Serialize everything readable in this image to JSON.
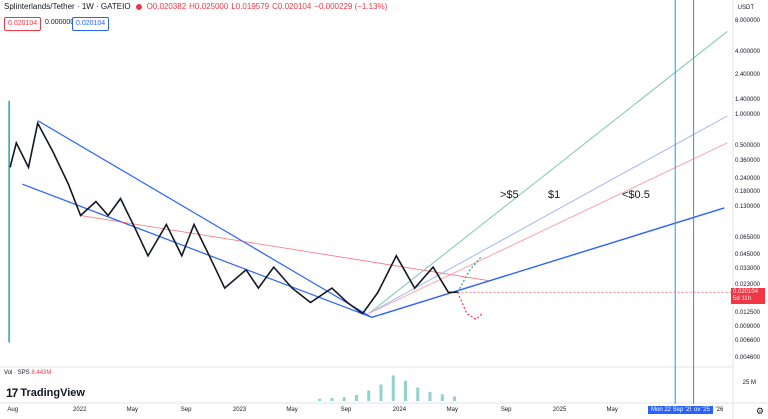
{
  "header": {
    "symbol": "Splinterlands/Tether · 1W · GATEIO",
    "open": "O0.020382",
    "high": "H0.025000",
    "low": "L0.019579",
    "close": "C0.020104",
    "change": "−0.000229 (−1.13%)",
    "bid": "0.020104",
    "spread": "0.000000",
    "ask": "0.020104"
  },
  "axis": {
    "currency": "USDT",
    "y_ticks": [
      "8.000000",
      "4.000000",
      "2.400000",
      "1.400000",
      "1.000000",
      "0.500000",
      "0.360000",
      "0.240000",
      "0.180000",
      "0.130000",
      "0.065000",
      "0.045000",
      "0.033000",
      "0.023000",
      "0.012500",
      "0.009000",
      "0.006600",
      "0.004600"
    ],
    "x_ticks": [
      "Aug",
      "2022",
      "May",
      "Sep",
      "2023",
      "May",
      "Sep",
      "2024",
      "May",
      "Sep",
      "2025",
      "May",
      "'26"
    ]
  },
  "last_price": {
    "value": "0.020104",
    "countdown": "5d 11h"
  },
  "date_markers": [
    "Mon 22 Sep '25",
    "ov '25"
  ],
  "annotations": [
    ">$5",
    "$1",
    "<$0.5"
  ],
  "volume": {
    "label": "Vol · SPS",
    "value": "8.443M",
    "ticks": [
      "25 M"
    ]
  },
  "branding": {
    "name": "TradingView"
  },
  "chart_data": {
    "type": "line",
    "title": "Splinterlands/Tether · 1W · GATEIO",
    "y_scale": "log",
    "ylim": [
      0.004,
      10
    ],
    "xlim": [
      "2021-07-12",
      "2026-02-01"
    ],
    "series": [
      {
        "values": [
          [
            "2021-07-26",
            0.32
          ],
          [
            "2021-08-09",
            0.55
          ],
          [
            "2021-09-06",
            0.32
          ],
          [
            "2021-09-27",
            0.85
          ],
          [
            "2021-11-01",
            0.45
          ],
          [
            "2021-12-06",
            0.22
          ],
          [
            "2022-01-03",
            0.11
          ],
          [
            "2022-02-07",
            0.15
          ],
          [
            "2022-03-07",
            0.11
          ],
          [
            "2022-04-04",
            0.16
          ],
          [
            "2022-05-09",
            0.08
          ],
          [
            "2022-06-06",
            0.045
          ],
          [
            "2022-07-18",
            0.09
          ],
          [
            "2022-08-22",
            0.045
          ],
          [
            "2022-09-19",
            0.09
          ],
          [
            "2022-10-24",
            0.045
          ],
          [
            "2022-11-28",
            0.022
          ],
          [
            "2023-01-16",
            0.033
          ],
          [
            "2023-02-13",
            0.022
          ],
          [
            "2023-03-20",
            0.035
          ],
          [
            "2023-05-01",
            0.022
          ],
          [
            "2023-06-12",
            0.016
          ],
          [
            "2023-07-31",
            0.022
          ],
          [
            "2023-09-04",
            0.016
          ],
          [
            "2023-10-09",
            0.0125
          ],
          [
            "2023-11-13",
            0.02
          ],
          [
            "2023-12-25",
            0.045
          ],
          [
            "2024-02-05",
            0.022
          ],
          [
            "2024-03-18",
            0.035
          ],
          [
            "2024-04-22",
            0.02
          ],
          [
            "2024-05-13",
            0.0201
          ]
        ]
      },
      {
        "values": [
          [
            "2024-05-13",
            0.0201
          ],
          [
            "2024-06-10",
            0.033
          ],
          [
            "2024-07-08",
            0.045
          ]
        ]
      },
      {
        "values": [
          [
            "2024-05-13",
            0.0201
          ],
          [
            "2024-06-03",
            0.0125
          ],
          [
            "2024-06-24",
            0.011
          ],
          [
            "2024-07-08",
            0.0125
          ]
        ]
      }
    ],
    "trendlines": [
      {
        "from": [
          "2021-09-27",
          0.9
        ],
        "to": [
          "2023-10-30",
          0.0115
        ]
      },
      {
        "from": [
          "2021-08-23",
          0.22
        ],
        "to": [
          "2023-10-30",
          0.0115
        ]
      },
      {
        "from": [
          "2022-01-03",
          0.11
        ],
        "to": [
          "2024-07-22",
          0.026
        ]
      },
      {
        "from": [
          "2023-10-30",
          0.0115
        ],
        "to": [
          "2026-01-12",
          0.13
        ]
      }
    ],
    "projections": [
      {
        "label": ">$5",
        "from": [
          "2023-10-23",
          0.0125
        ],
        "to": [
          "2026-01-19",
          6.5
        ]
      },
      {
        "label": "$1",
        "from": [
          "2023-10-23",
          0.0125
        ],
        "to": [
          "2026-01-19",
          1.0
        ]
      },
      {
        "label": "<$0.5",
        "from": [
          "2023-10-23",
          0.0125
        ],
        "to": [
          "2026-01-19",
          0.55
        ]
      }
    ],
    "vertical_markers": [
      "2025-09-22",
      "2025-11-03"
    ],
    "volume": {
      "values": [
        [
          "2023-07-03",
          0.3
        ],
        [
          "2023-07-31",
          0.4
        ],
        [
          "2023-08-28",
          0.5
        ],
        [
          "2023-09-25",
          0.8
        ],
        [
          "2023-10-23",
          1.4
        ],
        [
          "2023-11-20",
          2.2
        ],
        [
          "2023-12-18",
          3.4
        ],
        [
          "2024-01-15",
          2.7
        ],
        [
          "2024-02-12",
          1.8
        ],
        [
          "2024-03-11",
          1.2
        ],
        [
          "2024-04-08",
          0.9
        ],
        [
          "2024-05-06",
          0.6
        ]
      ]
    }
  }
}
